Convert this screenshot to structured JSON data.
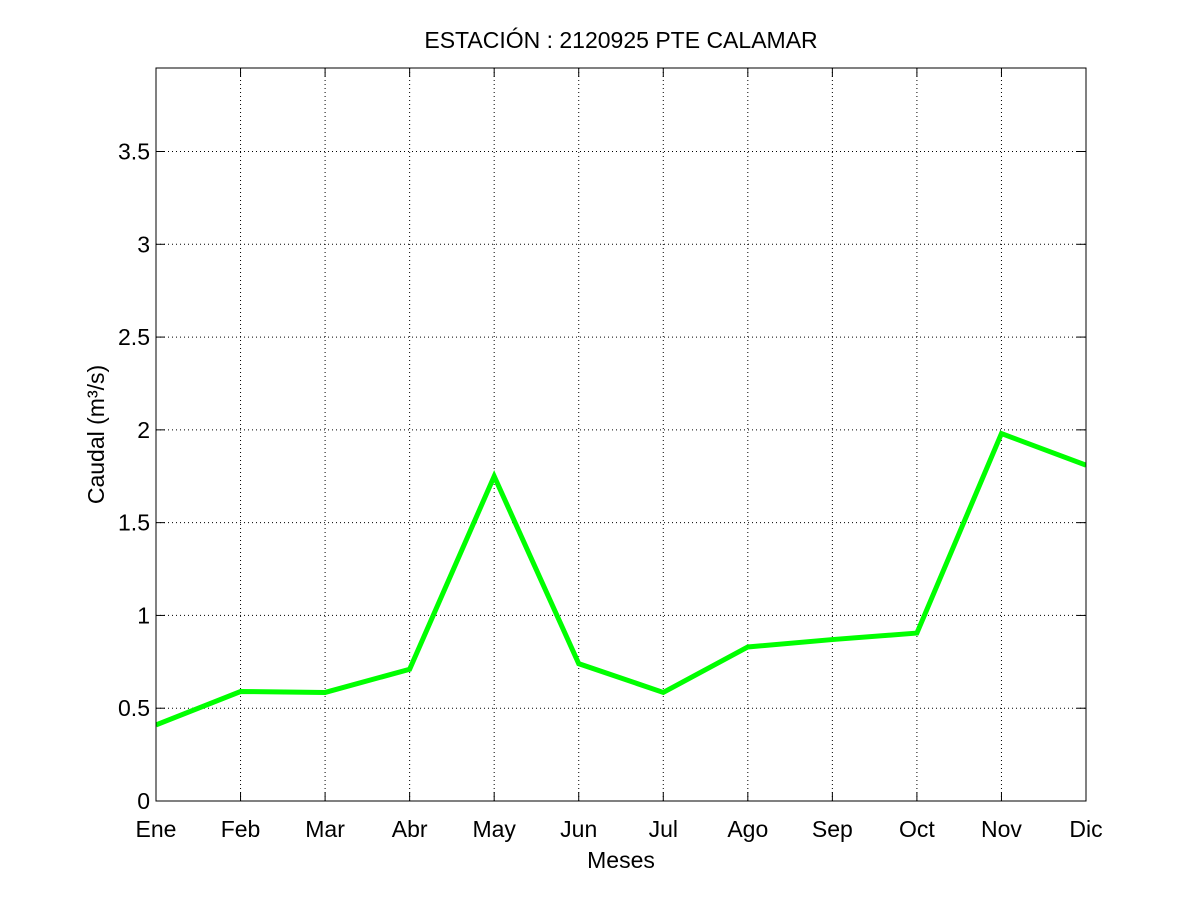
{
  "chart_data": {
    "type": "line",
    "title": "ESTACIÓN :  2120925  PTE CALAMAR",
    "xlabel": "Meses",
    "ylabel": "Caudal (m³/s)",
    "categories": [
      "Ene",
      "Feb",
      "Mar",
      "Abr",
      "May",
      "Jun",
      "Jul",
      "Ago",
      "Sep",
      "Oct",
      "Nov",
      "Dic"
    ],
    "series": [
      {
        "values": [
          0.41,
          0.59,
          0.585,
          0.71,
          1.75,
          0.74,
          0.585,
          0.83,
          0.87,
          0.905,
          1.98,
          1.81
        ],
        "color": "#00ff00"
      }
    ],
    "ylim": [
      0,
      3.95
    ],
    "yticks": [
      0,
      0.5,
      1,
      1.5,
      2,
      2.5,
      3,
      3.5
    ],
    "ytick_labels": [
      "0",
      "0.5",
      "1",
      "1.5",
      "2",
      "2.5",
      "3",
      "3.5"
    ],
    "grid": true,
    "grid_style": "dotted"
  }
}
